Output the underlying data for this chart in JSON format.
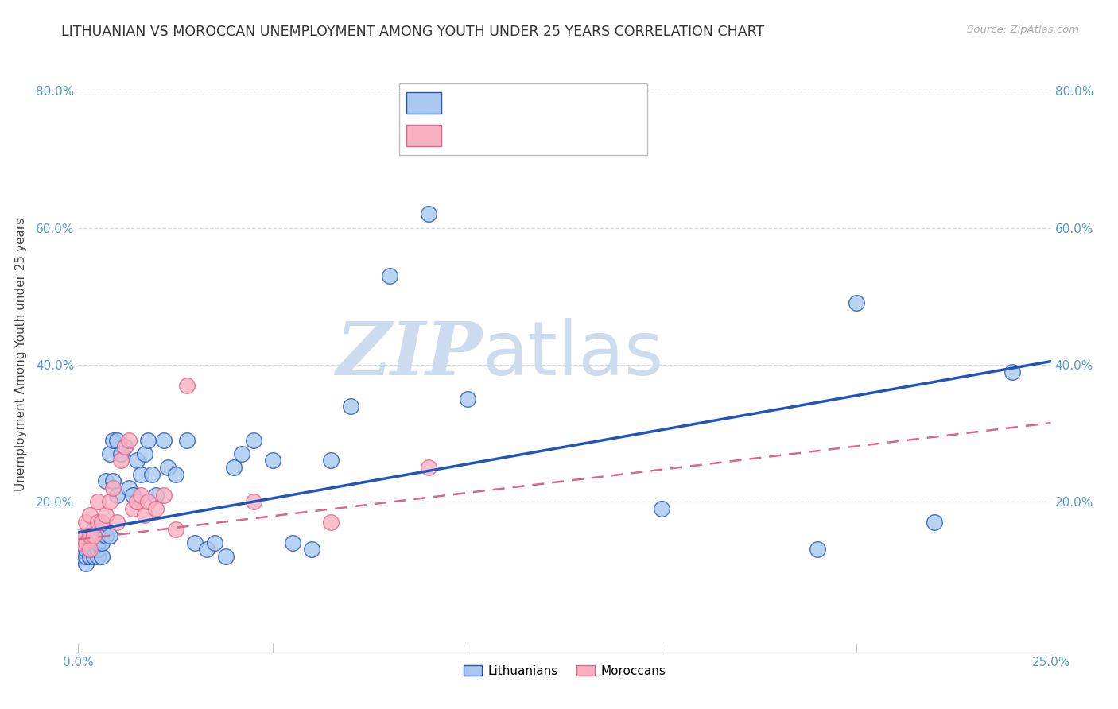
{
  "title": "LITHUANIAN VS MOROCCAN UNEMPLOYMENT AMONG YOUTH UNDER 25 YEARS CORRELATION CHART",
  "source": "Source: ZipAtlas.com",
  "ylabel": "Unemployment Among Youth under 25 years",
  "xlim": [
    0.0,
    0.25
  ],
  "ylim": [
    -0.02,
    0.85
  ],
  "xticks": [
    0.0,
    0.05,
    0.1,
    0.15,
    0.2,
    0.25
  ],
  "yticks": [
    0.0,
    0.2,
    0.4,
    0.6,
    0.8
  ],
  "ytick_labels": [
    "",
    "20.0%",
    "40.0%",
    "60.0%",
    "80.0%"
  ],
  "xtick_labels": [
    "0.0%",
    "",
    "",
    "",
    "",
    "25.0%"
  ],
  "background_color": "#ffffff",
  "grid_color": "#d8d8d8",
  "watermark_text1": "ZIP",
  "watermark_text2": "atlas",
  "watermark_color": "#ccdcee",
  "title_fontsize": 12.5,
  "axis_label_fontsize": 11,
  "tick_fontsize": 11,
  "series1_color": "#a8c8f0",
  "series2_color": "#f8b0c0",
  "line1_color": "#2255bb",
  "line2_color": "#dd6688",
  "series1_name": "Lithuanians",
  "series2_name": "Moroccans",
  "lith_x": [
    0.001,
    0.001,
    0.001,
    0.002,
    0.002,
    0.002,
    0.002,
    0.002,
    0.003,
    0.003,
    0.003,
    0.003,
    0.004,
    0.004,
    0.004,
    0.004,
    0.005,
    0.005,
    0.005,
    0.005,
    0.006,
    0.006,
    0.006,
    0.007,
    0.007,
    0.008,
    0.008,
    0.009,
    0.009,
    0.01,
    0.01,
    0.011,
    0.012,
    0.013,
    0.014,
    0.015,
    0.016,
    0.017,
    0.018,
    0.019,
    0.02,
    0.022,
    0.023,
    0.025,
    0.028,
    0.03,
    0.033,
    0.035,
    0.038,
    0.04,
    0.042,
    0.045,
    0.05,
    0.055,
    0.06,
    0.065,
    0.07,
    0.08,
    0.09,
    0.1,
    0.15,
    0.19,
    0.2,
    0.22,
    0.24
  ],
  "lith_y": [
    0.12,
    0.13,
    0.14,
    0.11,
    0.12,
    0.13,
    0.14,
    0.15,
    0.12,
    0.13,
    0.14,
    0.15,
    0.12,
    0.13,
    0.14,
    0.16,
    0.12,
    0.13,
    0.14,
    0.15,
    0.12,
    0.14,
    0.16,
    0.15,
    0.23,
    0.15,
    0.27,
    0.23,
    0.29,
    0.21,
    0.29,
    0.27,
    0.28,
    0.22,
    0.21,
    0.26,
    0.24,
    0.27,
    0.29,
    0.24,
    0.21,
    0.29,
    0.25,
    0.24,
    0.29,
    0.14,
    0.13,
    0.14,
    0.12,
    0.25,
    0.27,
    0.29,
    0.26,
    0.14,
    0.13,
    0.26,
    0.34,
    0.53,
    0.62,
    0.35,
    0.19,
    0.13,
    0.49,
    0.17,
    0.39
  ],
  "mor_x": [
    0.001,
    0.001,
    0.002,
    0.002,
    0.003,
    0.003,
    0.003,
    0.004,
    0.005,
    0.005,
    0.006,
    0.007,
    0.008,
    0.009,
    0.01,
    0.011,
    0.012,
    0.013,
    0.014,
    0.015,
    0.016,
    0.017,
    0.018,
    0.02,
    0.022,
    0.025,
    0.028,
    0.045,
    0.065,
    0.09
  ],
  "mor_y": [
    0.14,
    0.15,
    0.14,
    0.17,
    0.13,
    0.15,
    0.18,
    0.15,
    0.17,
    0.2,
    0.17,
    0.18,
    0.2,
    0.22,
    0.17,
    0.26,
    0.28,
    0.29,
    0.19,
    0.2,
    0.21,
    0.18,
    0.2,
    0.19,
    0.21,
    0.16,
    0.37,
    0.2,
    0.17,
    0.25
  ],
  "lith_line_x": [
    0.0,
    0.25
  ],
  "lith_line_y": [
    0.155,
    0.405
  ],
  "mor_line_x": [
    0.0,
    0.25
  ],
  "mor_line_y": [
    0.145,
    0.315
  ]
}
